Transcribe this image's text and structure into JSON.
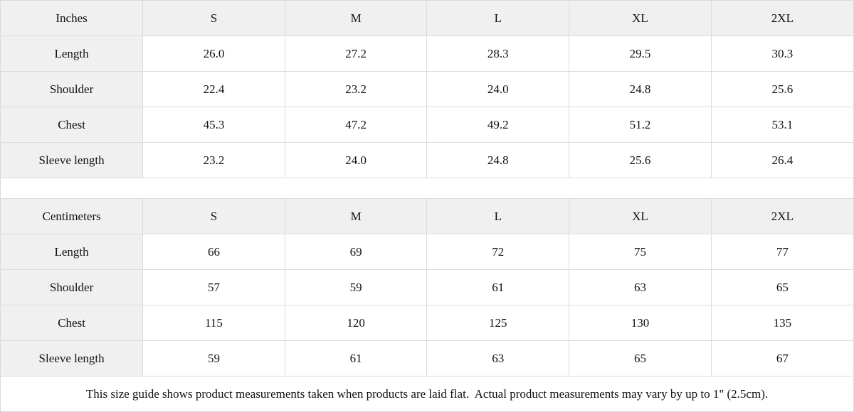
{
  "tables": [
    {
      "unit_header": "Inches",
      "sizes": [
        "S",
        "M",
        "L",
        "XL",
        "2XL"
      ],
      "rows": [
        {
          "label": "Length",
          "values": [
            "26.0",
            "27.2",
            "28.3",
            "29.5",
            "30.3"
          ]
        },
        {
          "label": "Shoulder",
          "values": [
            "22.4",
            "23.2",
            "24.0",
            "24.8",
            "25.6"
          ]
        },
        {
          "label": "Chest",
          "values": [
            "45.3",
            "47.2",
            "49.2",
            "51.2",
            "53.1"
          ]
        },
        {
          "label": "Sleeve length",
          "values": [
            "23.2",
            "24.0",
            "24.8",
            "25.6",
            "26.4"
          ]
        }
      ]
    },
    {
      "unit_header": "Centimeters",
      "sizes": [
        "S",
        "M",
        "L",
        "XL",
        "2XL"
      ],
      "rows": [
        {
          "label": "Length",
          "values": [
            "66",
            "69",
            "72",
            "75",
            "77"
          ]
        },
        {
          "label": "Shoulder",
          "values": [
            "57",
            "59",
            "61",
            "63",
            "65"
          ]
        },
        {
          "label": "Chest",
          "values": [
            "115",
            "120",
            "125",
            "130",
            "135"
          ]
        },
        {
          "label": "Sleeve length",
          "values": [
            "59",
            "61",
            "63",
            "65",
            "67"
          ]
        }
      ]
    }
  ],
  "note": "This size guide shows product measurements taken when products are laid flat.  Actual product measurements may vary by up to 1\" (2.5cm)."
}
